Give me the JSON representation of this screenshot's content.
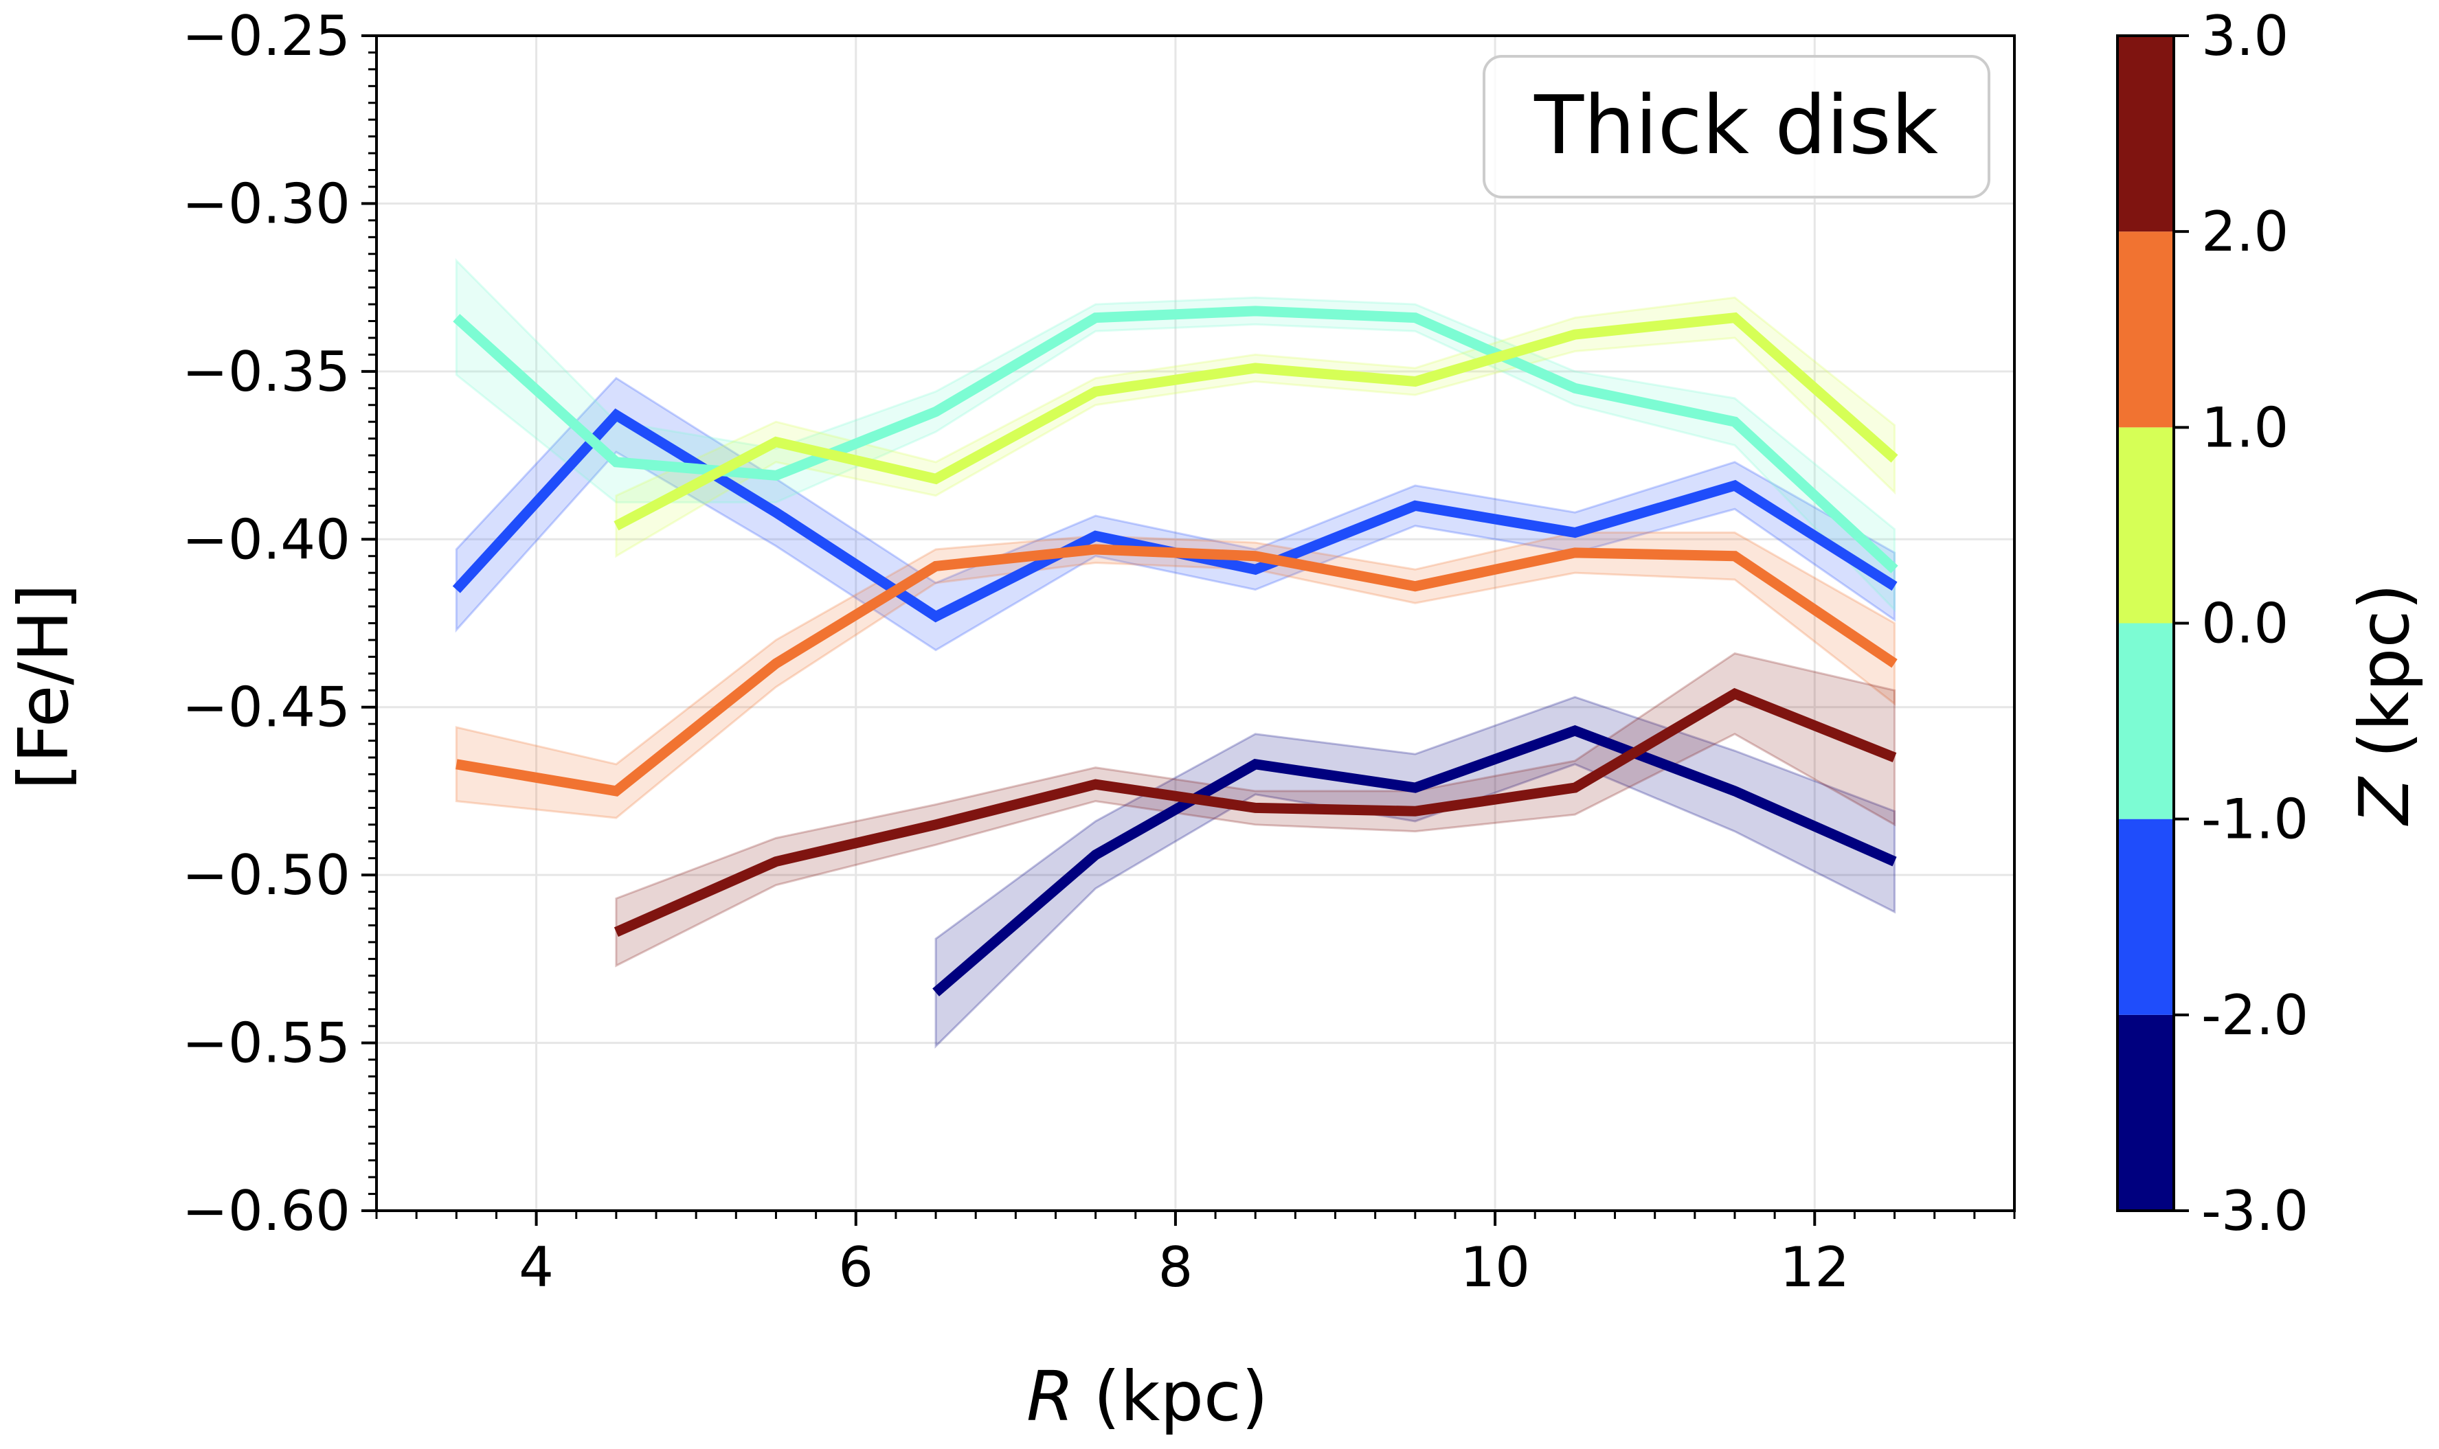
{
  "chart_data": {
    "type": "line",
    "xlabel": "R",
    "xlabel_unit": "(kpc)",
    "ylabel": "[Fe/H]",
    "xlim": [
      3.0,
      13.25
    ],
    "ylim": [
      -0.6,
      -0.25
    ],
    "xticks": [
      4,
      6,
      8,
      10,
      12
    ],
    "xtick_labels": [
      "4",
      "6",
      "8",
      "10",
      "12"
    ],
    "yticks": [
      -0.25,
      -0.3,
      -0.35,
      -0.4,
      -0.45,
      -0.5,
      -0.55,
      -0.6
    ],
    "ytick_labels": [
      "−0.25",
      "−0.30",
      "−0.35",
      "−0.40",
      "−0.45",
      "−0.50",
      "−0.55",
      "−0.60"
    ],
    "grid": true,
    "legend": {
      "text": "Thick disk",
      "placement": "top-right"
    },
    "colorbar": {
      "label": "Z",
      "label_unit": "(kpc)",
      "bounds": [
        -3.0,
        -2.0,
        -1.0,
        0.0,
        1.0,
        2.0,
        3.0
      ],
      "tick_labels": [
        "-3.0",
        "-2.0",
        "-1.0",
        "0.0",
        "1.0",
        "2.0",
        "3.0"
      ],
      "colors": [
        "#00007f",
        "#1f4dfb",
        "#7cfcd3",
        "#d6ff56",
        "#f17331",
        "#7f1410"
      ]
    },
    "series": [
      {
        "name": "Z -3.0 to -2.0",
        "color": "#00007f",
        "x": [
          6.5,
          7.5,
          8.5,
          9.5,
          10.5,
          11.5,
          12.5
        ],
        "y": [
          -0.535,
          -0.494,
          -0.467,
          -0.474,
          -0.457,
          -0.475,
          -0.496
        ],
        "err": [
          0.016,
          0.01,
          0.009,
          0.01,
          0.01,
          0.012,
          0.015
        ]
      },
      {
        "name": "Z -2.0 to -1.0",
        "color": "#1f4dfb",
        "x": [
          3.5,
          4.5,
          5.5,
          6.5,
          7.5,
          8.5,
          9.5,
          10.5,
          11.5,
          12.5
        ],
        "y": [
          -0.415,
          -0.363,
          -0.392,
          -0.423,
          -0.399,
          -0.409,
          -0.39,
          -0.398,
          -0.384,
          -0.414
        ],
        "err": [
          0.012,
          0.011,
          0.01,
          0.01,
          0.006,
          0.006,
          0.006,
          0.006,
          0.007,
          0.01
        ]
      },
      {
        "name": "Z -1.0 to 0.0",
        "color": "#7cfcd3",
        "x": [
          3.5,
          4.5,
          5.5,
          6.5,
          7.5,
          8.5,
          9.5,
          10.5,
          11.5,
          12.5
        ],
        "y": [
          -0.334,
          -0.377,
          -0.381,
          -0.362,
          -0.334,
          -0.332,
          -0.334,
          -0.355,
          -0.365,
          -0.409
        ],
        "err": [
          0.017,
          0.012,
          0.008,
          0.006,
          0.004,
          0.004,
          0.004,
          0.005,
          0.007,
          0.012
        ]
      },
      {
        "name": "Z 0.0 to 1.0",
        "color": "#d6ff56",
        "x": [
          4.5,
          5.5,
          6.5,
          7.5,
          8.5,
          9.5,
          10.5,
          11.5,
          12.5
        ],
        "y": [
          -0.396,
          -0.371,
          -0.382,
          -0.356,
          -0.349,
          -0.353,
          -0.339,
          -0.334,
          -0.376
        ],
        "err": [
          0.009,
          0.006,
          0.005,
          0.004,
          0.004,
          0.004,
          0.005,
          0.006,
          0.01
        ]
      },
      {
        "name": "Z 1.0 to 2.0",
        "color": "#f17331",
        "x": [
          3.5,
          4.5,
          5.5,
          6.5,
          7.5,
          8.5,
          9.5,
          10.5,
          11.5,
          12.5
        ],
        "y": [
          -0.467,
          -0.475,
          -0.437,
          -0.408,
          -0.403,
          -0.405,
          -0.414,
          -0.404,
          -0.405,
          -0.437
        ],
        "err": [
          0.011,
          0.008,
          0.007,
          0.005,
          0.004,
          0.004,
          0.005,
          0.006,
          0.007,
          0.012
        ]
      },
      {
        "name": "Z 2.0 to 3.0",
        "color": "#7f1410",
        "x": [
          4.5,
          5.5,
          6.5,
          7.5,
          8.5,
          9.5,
          10.5,
          11.5,
          12.5
        ],
        "y": [
          -0.517,
          -0.496,
          -0.485,
          -0.473,
          -0.48,
          -0.481,
          -0.474,
          -0.446,
          -0.465
        ],
        "err": [
          0.01,
          0.007,
          0.006,
          0.005,
          0.005,
          0.006,
          0.008,
          0.012,
          0.02
        ]
      }
    ]
  }
}
